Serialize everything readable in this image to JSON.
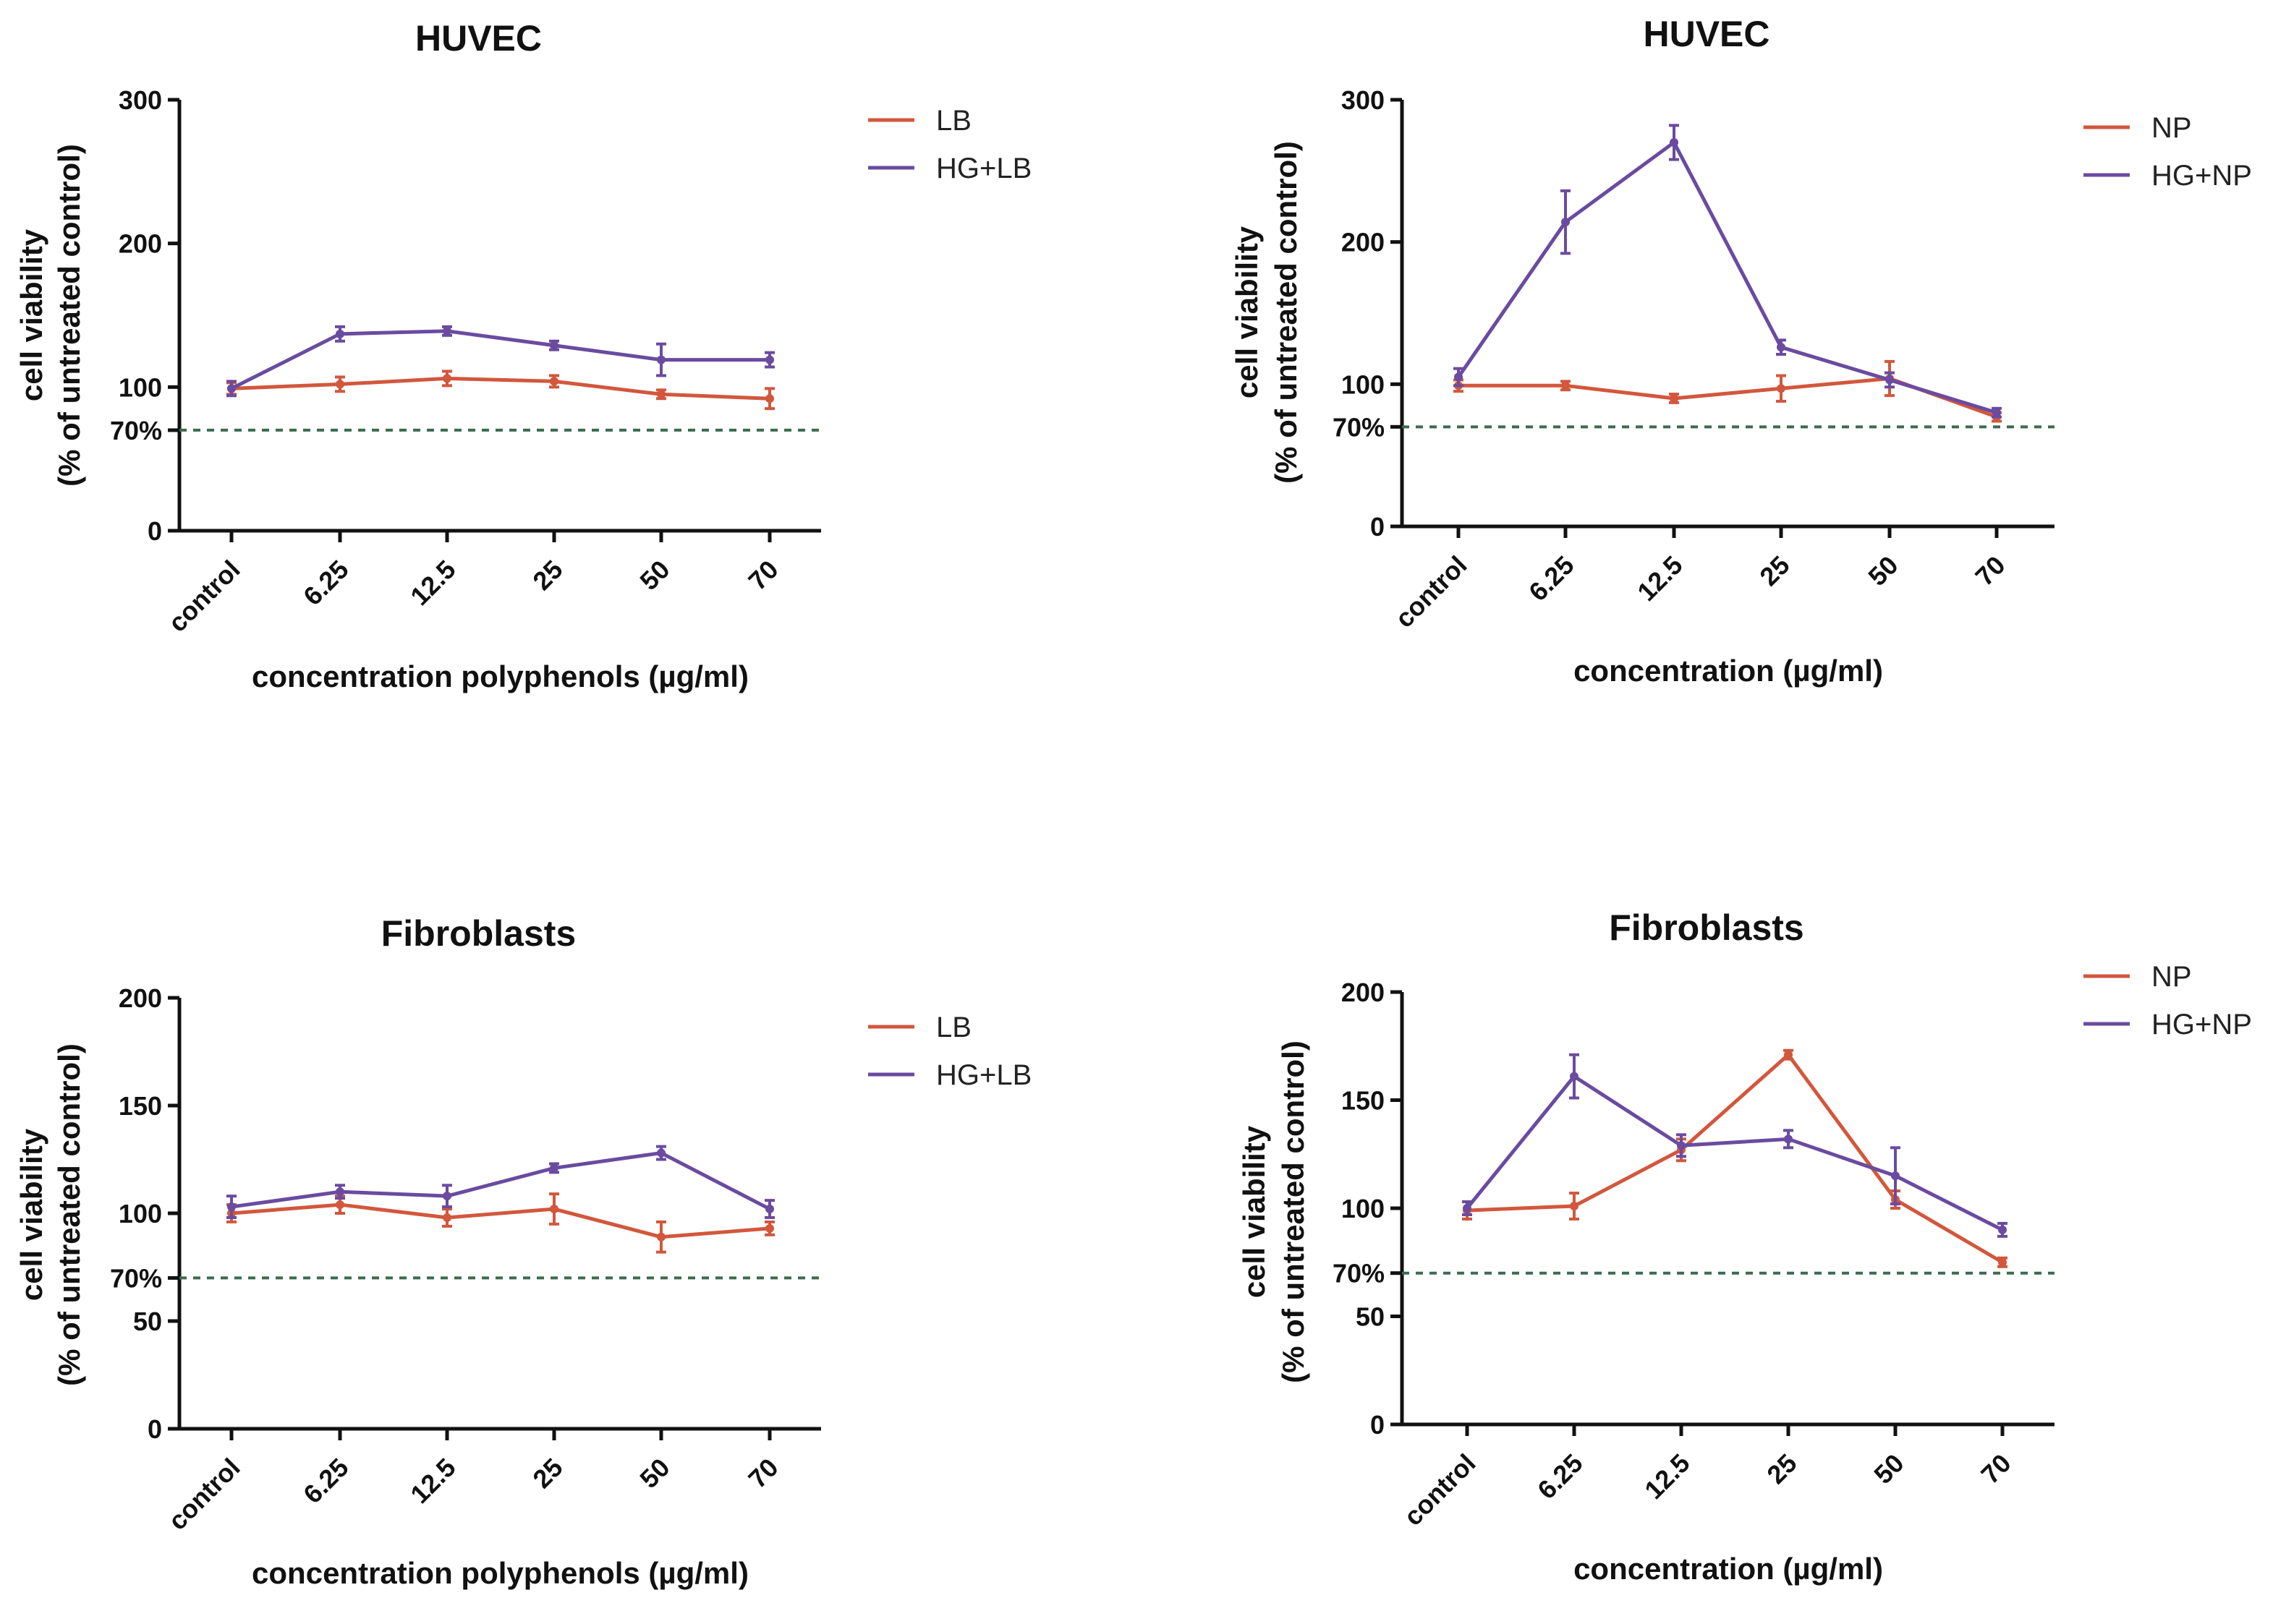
{
  "chart_data": [
    {
      "type": "line",
      "title": "HUVEC",
      "xlabel": "concentration polyphenols (µg/ml)",
      "ylabel_line1": "cell viability",
      "ylabel_line2": "(% of untreated control)",
      "ylim": [
        0,
        300
      ],
      "yticks": [
        "0",
        "100",
        "200",
        "300"
      ],
      "threshold": {
        "value": 70,
        "label": "70%"
      },
      "categories": [
        "control",
        "6.25",
        "12.5",
        "25",
        "50",
        "70"
      ],
      "legend_position": "top-right",
      "series": [
        {
          "name": "LB",
          "color": "#d2573c",
          "values": [
            99,
            102,
            106,
            104,
            95,
            92
          ],
          "errors": [
            4,
            5,
            5,
            4,
            3,
            7
          ]
        },
        {
          "name": "HG+LB",
          "color": "#6a4ba0",
          "values": [
            99,
            137,
            139,
            129,
            119,
            119
          ],
          "errors": [
            5,
            5,
            3,
            3,
            11,
            5
          ]
        }
      ]
    },
    {
      "type": "line",
      "title": "HUVEC",
      "xlabel": "concentration (µg/ml)",
      "ylabel_line1": "cell viability",
      "ylabel_line2": "(% of untreated control)",
      "ylim": [
        0,
        300
      ],
      "yticks": [
        "0",
        "100",
        "200",
        "300"
      ],
      "threshold": {
        "value": 70,
        "label": "70%"
      },
      "categories": [
        "control",
        "6.25",
        "12.5",
        "25",
        "50",
        "70"
      ],
      "legend_position": "top-right",
      "series": [
        {
          "name": "NP",
          "color": "#d2573c",
          "values": [
            99,
            99,
            90,
            97,
            104,
            77
          ],
          "errors": [
            4,
            3,
            3,
            9,
            12,
            3
          ]
        },
        {
          "name": "HG+NP",
          "color": "#6a4ba0",
          "values": [
            105,
            214,
            270,
            126,
            103,
            80
          ],
          "errors": [
            6,
            22,
            12,
            5,
            5,
            3
          ]
        }
      ]
    },
    {
      "type": "line",
      "title": "Fibroblasts",
      "xlabel": "concentration polyphenols (µg/ml)",
      "ylabel_line1": "cell viability",
      "ylabel_line2": "(% of untreated control)",
      "ylim": [
        0,
        200
      ],
      "yticks": [
        "0",
        "50",
        "100",
        "150",
        "200"
      ],
      "threshold": {
        "value": 70,
        "label": "70%"
      },
      "categories": [
        "control",
        "6.25",
        "12.5",
        "25",
        "50",
        "70"
      ],
      "legend_position": "top-right",
      "series": [
        {
          "name": "LB",
          "color": "#d2573c",
          "values": [
            100,
            104,
            98,
            102,
            89,
            93
          ],
          "errors": [
            4,
            4,
            4,
            7,
            7,
            3
          ]
        },
        {
          "name": "HG+LB",
          "color": "#6a4ba0",
          "values": [
            103,
            110,
            108,
            121,
            128,
            102
          ],
          "errors": [
            5,
            3,
            5,
            2,
            3,
            4
          ]
        }
      ]
    },
    {
      "type": "line",
      "title": "Fibroblasts",
      "xlabel": "concentration (µg/ml)",
      "ylabel_line1": "cell viability",
      "ylabel_line2": "(% of untreated control)",
      "ylim": [
        0,
        200
      ],
      "yticks": [
        "0",
        "50",
        "100",
        "150",
        "200"
      ],
      "threshold": {
        "value": 70,
        "label": "70%"
      },
      "categories": [
        "control",
        "6.25",
        "12.5",
        "25",
        "50",
        "70"
      ],
      "legend_position": "top-right",
      "series": [
        {
          "name": "NP",
          "color": "#d2573c",
          "values": [
            99,
            101,
            127,
            171,
            104,
            75
          ],
          "errors": [
            4,
            6,
            5,
            2,
            4,
            2
          ]
        },
        {
          "name": "HG+NP",
          "color": "#6a4ba0",
          "values": [
            100,
            161,
            129,
            132,
            115,
            90
          ],
          "errors": [
            3,
            10,
            5,
            4,
            13,
            3
          ]
        }
      ]
    }
  ]
}
